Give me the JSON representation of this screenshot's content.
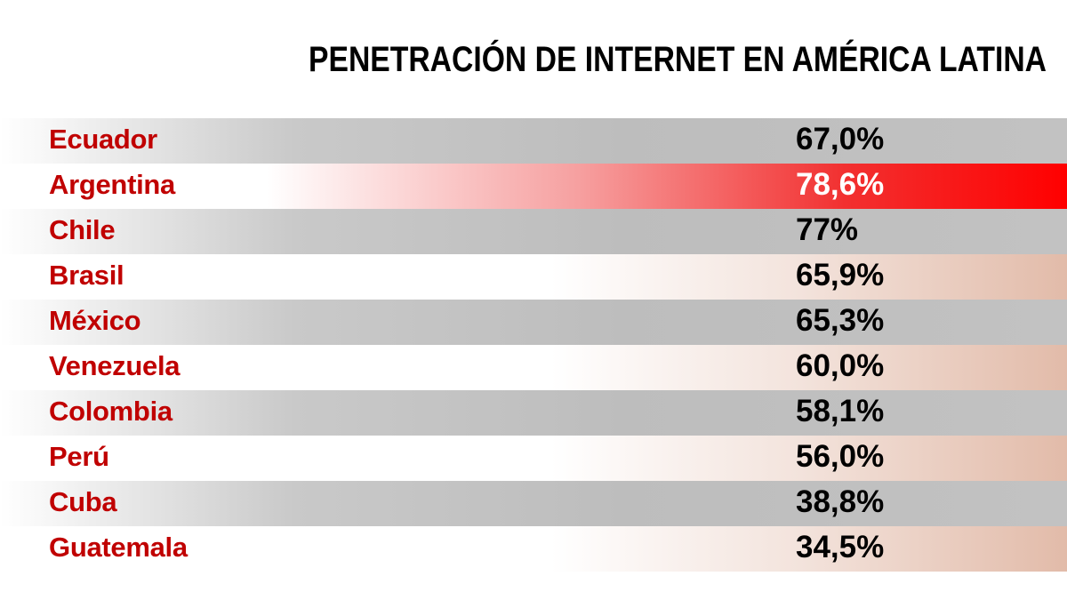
{
  "title": "PENETRACIÓN DE INTERNET EN AMÉRICA LATINA",
  "table": {
    "rows": [
      [
        "Ecuador",
        "67,0%"
      ],
      [
        "Argentina",
        "78,6%"
      ],
      [
        "Chile",
        "77%"
      ],
      [
        "Brasil",
        "65,9%"
      ],
      [
        "México",
        "65,3%"
      ],
      [
        "Venezuela",
        "60,0%"
      ],
      [
        "Colombia",
        "58,1%"
      ],
      [
        "Perú",
        "56,0%"
      ],
      [
        "Cuba",
        "38,8%"
      ],
      [
        "Guatemala",
        "34,5%"
      ]
    ]
  }
}
